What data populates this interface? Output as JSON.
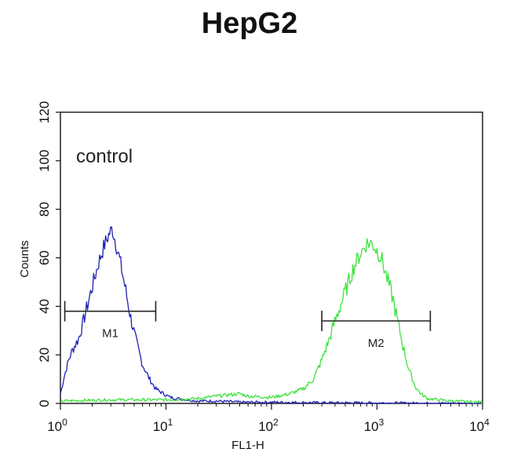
{
  "chart_data": {
    "type": "line",
    "title": "HepG2",
    "xlabel": "FL1-H",
    "ylabel": "Counts",
    "x_scale": "log",
    "xlim": [
      1,
      10000
    ],
    "ylim": [
      0,
      120
    ],
    "x_ticks": [
      {
        "base": "10",
        "exp": "0",
        "value": 1
      },
      {
        "base": "10",
        "exp": "1",
        "value": 10
      },
      {
        "base": "10",
        "exp": "2",
        "value": 100
      },
      {
        "base": "10",
        "exp": "3",
        "value": 1000
      },
      {
        "base": "10",
        "exp": "4",
        "value": 10000
      }
    ],
    "y_ticks": [
      "0",
      "20",
      "40",
      "60",
      "80",
      "100",
      "120"
    ],
    "annotation": "control",
    "series": [
      {
        "color": "#1f1fb4",
        "x": [
          1,
          1.1,
          1.2,
          1.3,
          1.5,
          1.7,
          2.0,
          2.3,
          2.6,
          2.9,
          3.1,
          3.4,
          3.7,
          4.1,
          4.6,
          5.2,
          6.0,
          7.0,
          8.0,
          9.5,
          11,
          13,
          16,
          20,
          30,
          50,
          100,
          300,
          1000,
          10000
        ],
        "y": [
          4,
          12,
          18,
          22,
          27,
          36,
          48,
          58,
          65,
          70,
          72,
          65,
          58,
          48,
          36,
          26,
          16,
          10,
          6,
          4,
          2.5,
          2,
          1.5,
          1,
          1,
          0.5,
          0.5,
          0.3,
          0.2,
          0
        ]
      },
      {
        "color": "#3ee23e",
        "x": [
          1,
          3,
          10,
          20,
          30,
          50,
          60,
          100,
          150,
          200,
          250,
          300,
          350,
          400,
          500,
          600,
          700,
          800,
          900,
          1000,
          1100,
          1200,
          1400,
          1600,
          1800,
          2000,
          2300,
          2600,
          3000,
          5000,
          10000
        ],
        "y": [
          1,
          1.5,
          1.5,
          2,
          3,
          4,
          3,
          2.5,
          4,
          6,
          10,
          18,
          26,
          34,
          46,
          56,
          62,
          66,
          66,
          63,
          60,
          54,
          44,
          32,
          22,
          14,
          7,
          4,
          2,
          1,
          0.5
        ]
      }
    ],
    "markers": [
      {
        "label": "M1",
        "x_start": 1.1,
        "x_end": 8,
        "y": 38
      },
      {
        "label": "M2",
        "x_start": 300,
        "x_end": 3200,
        "y": 34
      }
    ]
  }
}
